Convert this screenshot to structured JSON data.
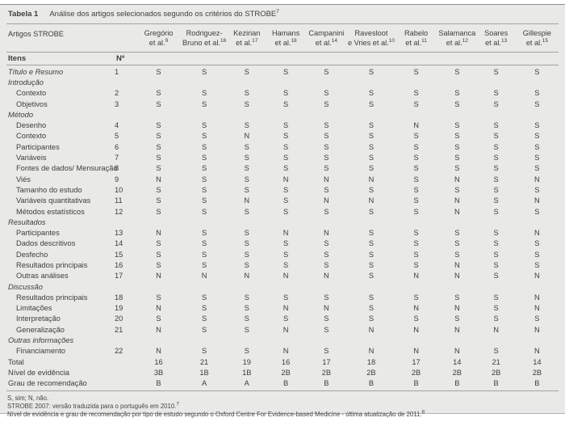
{
  "table": {
    "title_label": "Tabela 1",
    "title_text": "Análise dos artigos selecionados segundo os critérios do STROBE",
    "title_superscript": "7",
    "col_group_header": "Artigos STROBE",
    "items_header": "Itens",
    "number_header": "Nº",
    "studies": [
      {
        "line1": "Gregório",
        "line2": "et al.",
        "ref": "9"
      },
      {
        "line1": "Rodriguez-",
        "line2": "Bruno et al.",
        "ref": "16"
      },
      {
        "line1": "Kezirian",
        "line2": "et al.",
        "ref": "17"
      },
      {
        "line1": "Hamans",
        "line2": "et al.",
        "ref": "18"
      },
      {
        "line1": "Campanini",
        "line2": "et al.",
        "ref": "14"
      },
      {
        "line1": "Ravesloot",
        "line2": "e Vries et al.",
        "ref": "10"
      },
      {
        "line1": "Rabelo",
        "line2": "et al.",
        "ref": "11"
      },
      {
        "line1": "Salamanca",
        "line2": "et al.",
        "ref": "12"
      },
      {
        "line1": "Soares",
        "line2": "et al.",
        "ref": "13"
      },
      {
        "line1": "Gillespie",
        "line2": "et al.",
        "ref": "15"
      }
    ],
    "rows": [
      {
        "type": "item-italic",
        "label": "Título e Resumo",
        "num": "1",
        "values": [
          "S",
          "S",
          "S",
          "S",
          "S",
          "S",
          "S",
          "S",
          "S",
          "S"
        ]
      },
      {
        "type": "section",
        "label": "Introdução"
      },
      {
        "type": "item",
        "label": "Contexto",
        "num": "2",
        "values": [
          "S",
          "S",
          "S",
          "S",
          "S",
          "S",
          "S",
          "S",
          "S",
          "S"
        ]
      },
      {
        "type": "item",
        "label": "Objetivos",
        "num": "3",
        "values": [
          "S",
          "S",
          "S",
          "S",
          "S",
          "S",
          "S",
          "S",
          "S",
          "S"
        ]
      },
      {
        "type": "section",
        "label": "Método"
      },
      {
        "type": "item",
        "label": "Desenho",
        "num": "4",
        "values": [
          "S",
          "S",
          "S",
          "S",
          "S",
          "S",
          "N",
          "S",
          "S",
          "S"
        ]
      },
      {
        "type": "item",
        "label": "Contexto",
        "num": "5",
        "values": [
          "S",
          "S",
          "N",
          "S",
          "S",
          "S",
          "S",
          "S",
          "S",
          "S"
        ]
      },
      {
        "type": "item",
        "label": "Participantes",
        "num": "6",
        "values": [
          "S",
          "S",
          "S",
          "S",
          "S",
          "S",
          "S",
          "S",
          "S",
          "S"
        ]
      },
      {
        "type": "item",
        "label": "Variáveis",
        "num": "7",
        "values": [
          "S",
          "S",
          "S",
          "S",
          "S",
          "S",
          "S",
          "S",
          "S",
          "S"
        ]
      },
      {
        "type": "item",
        "label": "Fontes de dados/ Mensuração",
        "num": "8",
        "values": [
          "S",
          "S",
          "S",
          "S",
          "S",
          "S",
          "S",
          "S",
          "S",
          "S"
        ]
      },
      {
        "type": "item",
        "label": "Viés",
        "num": "9",
        "values": [
          "N",
          "S",
          "S",
          "N",
          "N",
          "N",
          "S",
          "N",
          "S",
          "N"
        ]
      },
      {
        "type": "item",
        "label": "Tamanho do estudo",
        "num": "10",
        "values": [
          "S",
          "S",
          "S",
          "S",
          "S",
          "S",
          "S",
          "S",
          "S",
          "S"
        ]
      },
      {
        "type": "item",
        "label": "Variáveis quantitativas",
        "num": "11",
        "values": [
          "S",
          "S",
          "N",
          "S",
          "N",
          "N",
          "S",
          "N",
          "S",
          "N"
        ]
      },
      {
        "type": "item",
        "label": "Métodos estatísticos",
        "num": "12",
        "values": [
          "S",
          "S",
          "S",
          "S",
          "S",
          "S",
          "S",
          "N",
          "S",
          "S"
        ]
      },
      {
        "type": "section",
        "label": "Resultados"
      },
      {
        "type": "item",
        "label": "Participantes",
        "num": "13",
        "values": [
          "N",
          "S",
          "S",
          "N",
          "N",
          "S",
          "S",
          "S",
          "S",
          "N"
        ]
      },
      {
        "type": "item",
        "label": "Dados descritivos",
        "num": "14",
        "values": [
          "S",
          "S",
          "S",
          "S",
          "S",
          "S",
          "S",
          "S",
          "S",
          "S"
        ]
      },
      {
        "type": "item",
        "label": "Desfecho",
        "num": "15",
        "values": [
          "S",
          "S",
          "S",
          "S",
          "S",
          "S",
          "S",
          "S",
          "S",
          "S"
        ]
      },
      {
        "type": "item",
        "label": "Resultados principais",
        "num": "16",
        "values": [
          "S",
          "S",
          "S",
          "S",
          "S",
          "S",
          "S",
          "N",
          "S",
          "S"
        ]
      },
      {
        "type": "item",
        "label": "Outras análises",
        "num": "17",
        "values": [
          "N",
          "N",
          "N",
          "N",
          "N",
          "S",
          "N",
          "N",
          "S",
          "N"
        ]
      },
      {
        "type": "section",
        "label": "Discussão"
      },
      {
        "type": "item",
        "label": "Resultados principais",
        "num": "18",
        "values": [
          "S",
          "S",
          "S",
          "S",
          "S",
          "S",
          "S",
          "S",
          "S",
          "N"
        ]
      },
      {
        "type": "item",
        "label": "Limitações",
        "num": "19",
        "values": [
          "N",
          "S",
          "S",
          "N",
          "N",
          "S",
          "N",
          "N",
          "S",
          "N"
        ]
      },
      {
        "type": "item",
        "label": "Interpretação",
        "num": "20",
        "values": [
          "S",
          "S",
          "S",
          "S",
          "S",
          "S",
          "S",
          "S",
          "S",
          "S"
        ]
      },
      {
        "type": "item",
        "label": "Generalização",
        "num": "21",
        "values": [
          "N",
          "S",
          "S",
          "N",
          "S",
          "N",
          "N",
          "N",
          "N",
          "N"
        ]
      },
      {
        "type": "section",
        "label": "Outras informações"
      },
      {
        "type": "item",
        "label": "Financiamento",
        "num": "22",
        "values": [
          "N",
          "S",
          "S",
          "N",
          "S",
          "N",
          "N",
          "N",
          "S",
          "N"
        ]
      },
      {
        "type": "summary",
        "label": "Total",
        "num": "",
        "values": [
          "16",
          "21",
          "19",
          "16",
          "17",
          "18",
          "17",
          "14",
          "21",
          "14"
        ]
      },
      {
        "type": "summary",
        "label": "Nível de evidência",
        "num": "",
        "values": [
          "3B",
          "1B",
          "1B",
          "2B",
          "2B",
          "2B",
          "2B",
          "2B",
          "2B",
          "2B"
        ]
      },
      {
        "type": "summary",
        "label": "Grau de recomendação",
        "num": "",
        "values": [
          "B",
          "A",
          "A",
          "B",
          "B",
          "B",
          "B",
          "B",
          "B",
          "B"
        ]
      }
    ],
    "footnotes": [
      {
        "text": "S, sim; N, não.",
        "sup": ""
      },
      {
        "text": "STROBE 2007: versão traduzida para o português em 2010.",
        "sup": "7"
      },
      {
        "text": "Nível de evidência e grau de recomendação por tipo de estudo segundo o Oxford Centre For Evidence-based Medicine - última atualização de 2011.",
        "sup": "8"
      }
    ]
  }
}
